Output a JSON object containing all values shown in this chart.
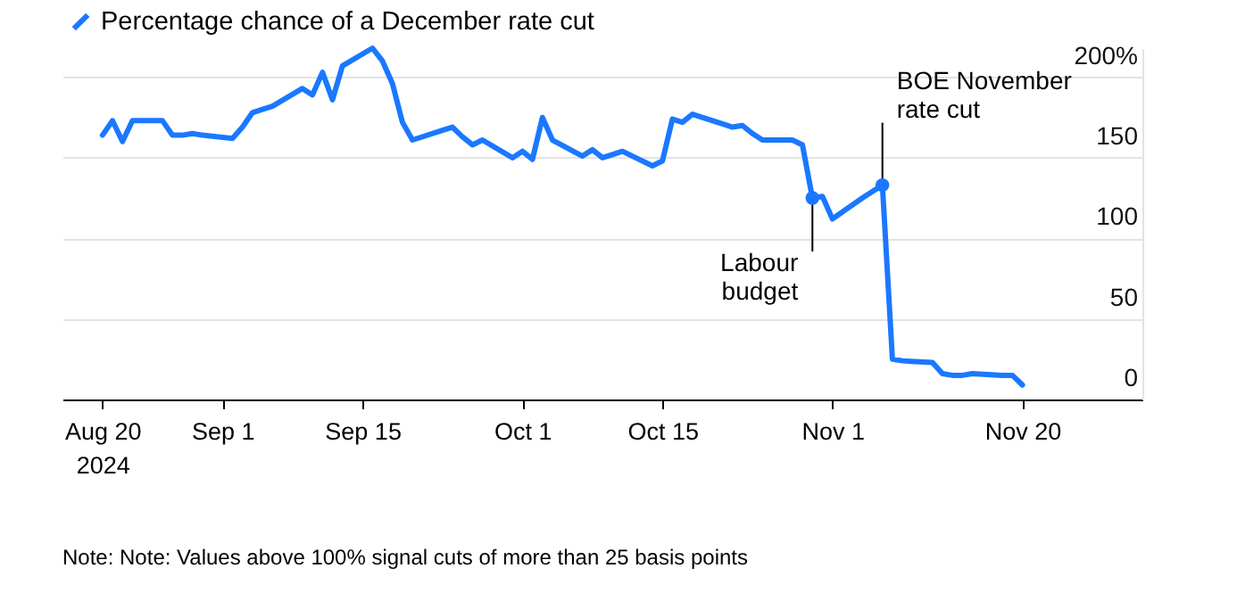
{
  "chart_data": {
    "type": "line",
    "x": [
      "2024-08-20",
      "2024-08-21",
      "2024-08-22",
      "2024-08-23",
      "2024-08-26",
      "2024-08-27",
      "2024-08-28",
      "2024-08-29",
      "2024-08-30",
      "2024-09-02",
      "2024-09-03",
      "2024-09-04",
      "2024-09-05",
      "2024-09-06",
      "2024-09-09",
      "2024-09-10",
      "2024-09-11",
      "2024-09-12",
      "2024-09-13",
      "2024-09-16",
      "2024-09-17",
      "2024-09-18",
      "2024-09-19",
      "2024-09-20",
      "2024-09-23",
      "2024-09-24",
      "2024-09-25",
      "2024-09-26",
      "2024-09-27",
      "2024-09-30",
      "2024-10-01",
      "2024-10-02",
      "2024-10-03",
      "2024-10-04",
      "2024-10-07",
      "2024-10-08",
      "2024-10-09",
      "2024-10-10",
      "2024-10-11",
      "2024-10-14",
      "2024-10-15",
      "2024-10-16",
      "2024-10-17",
      "2024-10-18",
      "2024-10-21",
      "2024-10-22",
      "2024-10-23",
      "2024-10-24",
      "2024-10-25",
      "2024-10-28",
      "2024-10-29",
      "2024-10-30",
      "2024-10-31",
      "2024-11-01",
      "2024-11-04",
      "2024-11-05",
      "2024-11-06",
      "2024-11-07",
      "2024-11-08",
      "2024-11-11",
      "2024-11-12",
      "2024-11-13",
      "2024-11-14",
      "2024-11-15",
      "2024-11-18",
      "2024-11-19",
      "2024-11-20"
    ],
    "series": [
      {
        "name": "Percentage chance of a December rate cut",
        "color": "#1a78ff",
        "values": [
          164,
          173,
          160,
          173,
          173,
          164,
          164,
          165,
          164,
          162,
          169,
          178,
          180,
          182,
          193,
          189,
          203,
          186,
          207,
          218,
          210,
          196,
          172,
          161,
          167,
          169,
          163,
          158,
          161,
          150,
          154,
          149,
          175,
          161,
          151,
          155,
          150,
          152,
          154,
          145,
          148,
          174,
          172,
          177,
          171,
          169,
          170,
          165,
          161,
          161,
          158,
          125,
          126,
          112,
          125,
          129,
          133,
          25,
          24,
          23,
          16,
          15,
          15,
          16,
          15,
          15,
          9
        ]
      }
    ],
    "xlim": [
      "2024-08-16",
      "2024-12-02"
    ],
    "xticks": [
      {
        "value": "2024-08-20",
        "label": "Aug 20 2024"
      },
      {
        "value": "2024-09-01",
        "label": "Sep 1"
      },
      {
        "value": "2024-09-15",
        "label": "Sep 15"
      },
      {
        "value": "2024-10-01",
        "label": "Oct 1"
      },
      {
        "value": "2024-10-15",
        "label": "Oct 15"
      },
      {
        "value": "2024-11-01",
        "label": "Nov 1"
      },
      {
        "value": "2024-11-20",
        "label": "Nov 20"
      }
    ],
    "ylim": [
      0,
      218
    ],
    "yticks": [
      0,
      50,
      100,
      150,
      {
        "value": 200,
        "label": "200%"
      }
    ],
    "annotations": [
      {
        "text": "Labour budget",
        "x": "2024-10-30",
        "y": 125
      },
      {
        "text": "BOE November rate cut",
        "x": "2024-11-06",
        "y": 133
      },
      "Note: Note: Values above 100% signal cuts of more than 25 basis points"
    ],
    "grid": "y",
    "legend": "top left",
    "line_style": "solid"
  }
}
